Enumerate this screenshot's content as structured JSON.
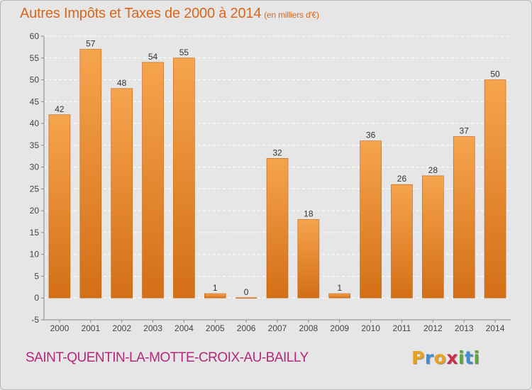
{
  "header": {
    "title": "Autres Impôts et Taxes de 2000 à 2014",
    "unit": "(en milliers d'€)"
  },
  "footer": {
    "commune": "SAINT-QUENTIN-LA-MOTTE-CROIX-AU-BAILLY",
    "logo_letters": [
      "P",
      "r",
      "o",
      "x",
      "i",
      "t",
      "i"
    ],
    "logo_colors": [
      "#e8a21e",
      "#3f8fd0",
      "#e8a21e",
      "#c8304a",
      "#5aa83a",
      "#3f8fd0",
      "#5aa83a"
    ]
  },
  "colors": {
    "accent": "#d9661a",
    "commune": "#b5277a",
    "bar_light": "#f6a44e",
    "bar_dark": "#d36f16",
    "grid": "#ffffff"
  },
  "chart_data": {
    "type": "bar",
    "title": "Autres Impôts et Taxes de 2000 à 2014",
    "subtitle": "(en milliers d'€)",
    "xlabel": "",
    "ylabel": "",
    "categories": [
      "2000",
      "2001",
      "2002",
      "2003",
      "2004",
      "2005",
      "2006",
      "2007",
      "2008",
      "2009",
      "2010",
      "2011",
      "2012",
      "2013",
      "2014"
    ],
    "values": [
      42,
      57,
      48,
      54,
      55,
      1,
      0,
      32,
      18,
      1,
      36,
      26,
      28,
      37,
      50
    ],
    "data_labels": [
      "42",
      "57",
      "48",
      "54",
      "55",
      "1",
      "0",
      "32",
      "18",
      "1",
      "36",
      "26",
      "28",
      "37",
      "50"
    ],
    "ylim": [
      -5,
      60
    ],
    "yticks": [
      -5,
      0,
      5,
      10,
      15,
      20,
      25,
      30,
      35,
      40,
      45,
      50,
      55,
      60
    ],
    "grid": "horizontal dashed",
    "legend": "none"
  }
}
